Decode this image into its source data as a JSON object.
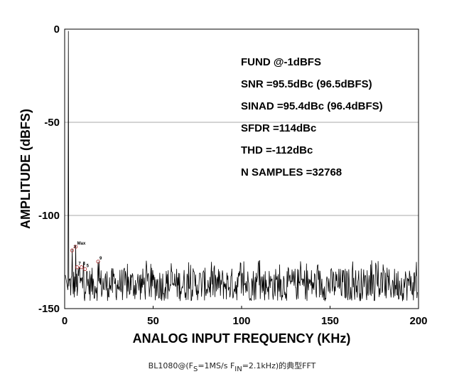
{
  "chart_data": {
    "type": "line",
    "title": "",
    "xlabel": "ANALOG INPUT FREQUENCY (KHz)",
    "ylabel": "AMPLITUDE (dBFS)",
    "xlim": [
      0,
      200
    ],
    "ylim": [
      -150,
      0
    ],
    "xticks": [
      "0",
      "50",
      "100",
      "150",
      "200"
    ],
    "yticks": [
      "0",
      "-50",
      "-100",
      "-150"
    ],
    "grid": "horizontal",
    "series": [
      {
        "color": "#000000",
        "fundamental": {
          "x": 2.1,
          "y": -1
        },
        "noise_floor": {
          "min": -148,
          "max": -124,
          "typical": -137
        },
        "peaks": [
          {
            "x": 4.2,
            "y": -118
          },
          {
            "x": 6.3,
            "y": -116
          },
          {
            "x": 8.4,
            "y": -128
          },
          {
            "x": 10.5,
            "y": -129
          },
          {
            "x": 12.6,
            "y": -130
          },
          {
            "x": 18.9,
            "y": -125
          }
        ]
      }
    ],
    "harmonic_markers": [
      {
        "label": "2",
        "x": 4.2,
        "y": -118
      },
      {
        "label": "Max",
        "x": 6.3,
        "y": -116
      },
      {
        "label": "7",
        "x": 7.0,
        "y": -127
      },
      {
        "label": "4",
        "x": 9.5,
        "y": -127
      },
      {
        "label": "5",
        "x": 11.5,
        "y": -128
      },
      {
        "label": "9",
        "x": 18.9,
        "y": -124
      }
    ],
    "annotations": [
      "FUND @-1dBFS",
      "SNR =95.5dBc (96.5dBFS)",
      "SINAD =95.4dBc (96.4dBFS)",
      "SFDR =114dBc",
      "THD =-112dBc",
      "N SAMPLES =32768"
    ]
  },
  "caption": {
    "prefix": "BL1080@(F",
    "sub1": "S",
    "mid": "=1MS/s F",
    "sub2": "IN",
    "suffix": "=2.1kHz)的典型FFT"
  }
}
